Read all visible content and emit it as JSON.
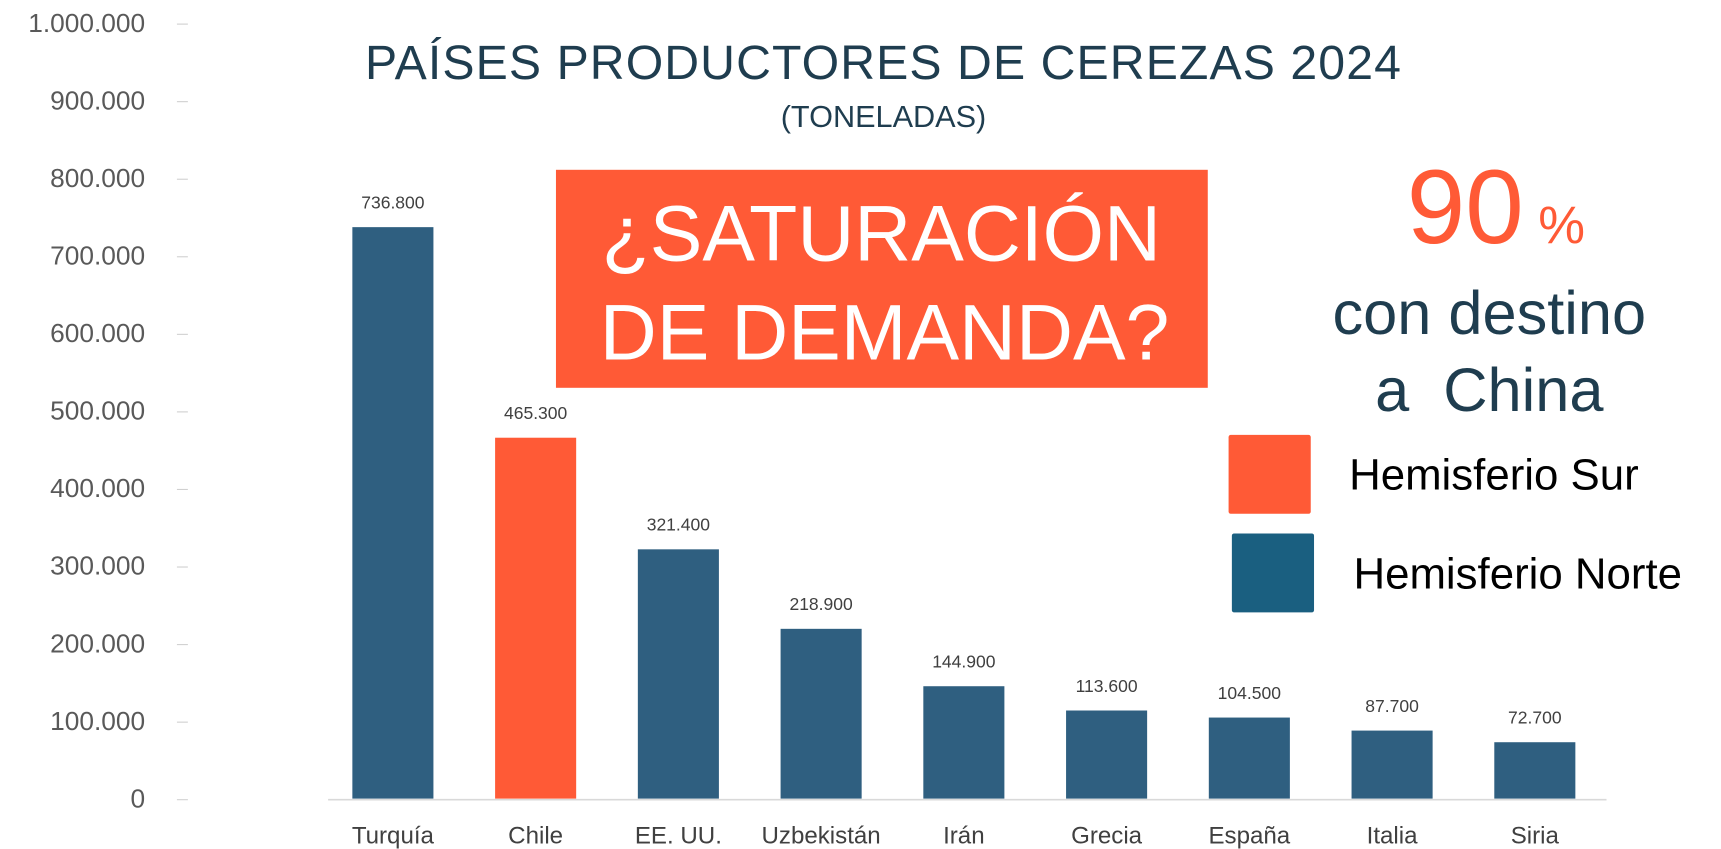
{
  "chart_data": {
    "type": "bar",
    "title": "PAÍSES PRODUCTORES DE CEREZAS 2024",
    "subtitle": "(TONELADAS)",
    "categories": [
      "Turquía",
      "Chile",
      "EE. UU.",
      "Uzbekistán",
      "Irán",
      "Grecia",
      "España",
      "Italia",
      "Siria"
    ],
    "values": [
      736800,
      465300,
      321400,
      218900,
      144900,
      113600,
      104500,
      87700,
      72700
    ],
    "value_labels": [
      "736.800",
      "465.300",
      "321.400",
      "218.900",
      "144.900",
      "113.600",
      "104.500",
      "87.700",
      "72.700"
    ],
    "colors": [
      "#2f5f80",
      "#ff5a36",
      "#2f5f80",
      "#2f5f80",
      "#2f5f80",
      "#2f5f80",
      "#2f5f80",
      "#2f5f80",
      "#2f5f80"
    ],
    "ylim": [
      0,
      1000000
    ],
    "yticks": [
      0,
      {
        "value": 100000,
        "label": "100.000"
      },
      {
        "value": 200000,
        "label": "200.000"
      },
      {
        "value": 300000,
        "label": "300.000"
      },
      {
        "value": 400000,
        "label": "400.000"
      },
      {
        "value": 500000,
        "label": "500.000"
      },
      {
        "value": 600000,
        "label": "600.000"
      },
      {
        "value": 700000,
        "label": "700.000"
      },
      {
        "value": 800000,
        "label": "800.000"
      },
      {
        "value": 900000,
        "label": "900.000"
      },
      {
        "value": 1000000,
        "label": "1.000.000"
      }
    ],
    "legend": [
      {
        "name": "Hemisferio Sur",
        "color": "#ff5a36"
      },
      {
        "name": "Hemisferio Norte",
        "color": "#1a5f80"
      }
    ],
    "annotations": {
      "highlight": [
        "¿SATURACIÓN",
        "DE DEMANDA?"
      ],
      "stat_value": "90",
      "stat_unit": "%",
      "stat_text": [
        "con destino",
        "a  China"
      ]
    }
  }
}
